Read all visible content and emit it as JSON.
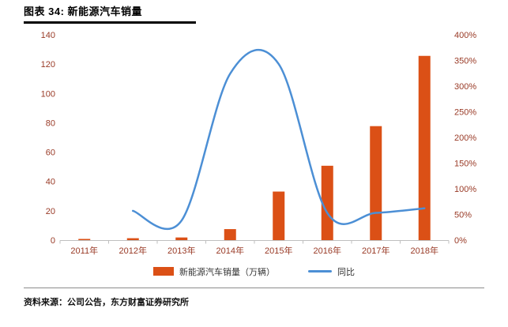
{
  "page": {
    "title": "图表 34: 新能源汽车销量",
    "source_note": "资料来源：公司公告，东方财富证券研究所"
  },
  "colors": {
    "bar": "#DB5016",
    "line": "#4C8FD5",
    "axis_label": "#993A26",
    "axis_line": "#BFBFBF",
    "title_rule": "#000000"
  },
  "chart_data": {
    "type": "bar",
    "subtype": "combo-bar-line-dual-axis",
    "title": "图表 34: 新能源汽车销量",
    "categories": [
      "2011年",
      "2012年",
      "2013年",
      "2014年",
      "2015年",
      "2016年",
      "2017年",
      "2018年"
    ],
    "series": [
      {
        "name": "新能源汽车销量（万辆）",
        "type": "bar",
        "axis": "left",
        "values": [
          0.8,
          1.3,
          1.8,
          7.5,
          33.1,
          50.7,
          77.7,
          125.6
        ]
      },
      {
        "name": "同比",
        "type": "line",
        "axis": "right",
        "values": [
          null,
          57,
          38,
          324,
          343,
          53,
          53,
          62
        ]
      }
    ],
    "left_axis": {
      "min": 0,
      "max": 140,
      "step": 20,
      "tick_labels": [
        "0",
        "20",
        "40",
        "60",
        "80",
        "100",
        "120",
        "140"
      ]
    },
    "right_axis": {
      "min": 0,
      "max": 400,
      "step": 50,
      "tick_labels": [
        "0%",
        "50%",
        "100%",
        "150%",
        "200%",
        "250%",
        "300%",
        "350%",
        "400%"
      ]
    },
    "grid": false,
    "legend_position": "bottom"
  }
}
